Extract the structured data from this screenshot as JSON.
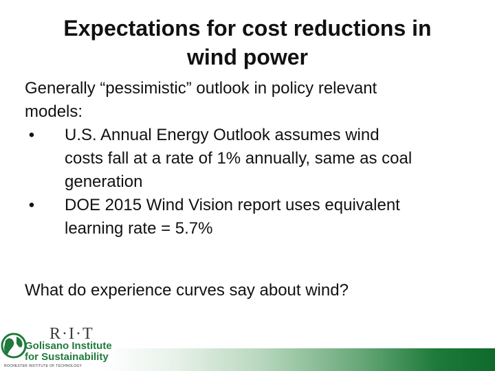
{
  "slide": {
    "title_lines": [
      "Expectations for cost reductions in",
      "wind power"
    ],
    "intro_lines": [
      "Generally “pessimistic” outlook in policy relevant",
      "models:"
    ],
    "bullets": [
      {
        "marker": "•",
        "lines": [
          "U.S. Annual Energy Outlook assumes wind",
          "costs fall at a rate of 1% annually, same as coal",
          "generation"
        ]
      },
      {
        "marker": "•",
        "lines": [
          "DOE 2015 Wind Vision report uses equivalent",
          "learning rate = 5.7%"
        ]
      }
    ],
    "question": "What do experience curves say about wind?"
  },
  "logo": {
    "rit": "R·I·T",
    "line1": "Golisano Institute",
    "line2": "for Sustainability",
    "tagline": "ROCHESTER INSTITUTE OF TECHNOLOGY",
    "icon": "globe-icon",
    "brand_green": "#1f7a3c"
  }
}
